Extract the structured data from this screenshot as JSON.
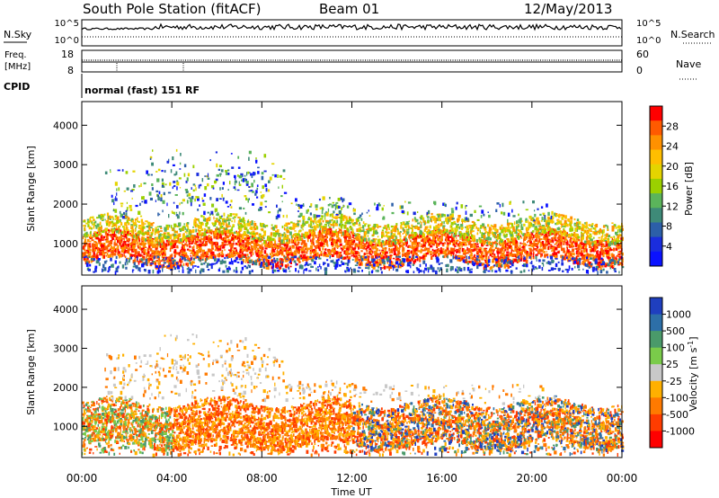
{
  "header": {
    "station": "South Pole Station (fitACF)",
    "beam": "Beam 01",
    "date": "12/May/2013"
  },
  "top_panels": {
    "nsky_label": "N.Sky",
    "nsearch_label": "N.Search",
    "nsky_ticks": [
      "10^5",
      "10^0"
    ],
    "nsearch_ticks": [
      "10^5",
      "10^0"
    ],
    "freq_label": "Freq.",
    "freq_unit": "[MHz]",
    "freq_ticks": [
      "18",
      "8"
    ],
    "nave_label": "Nave",
    "nave_ticks": [
      "60",
      "0"
    ],
    "cpid_label": "CPID",
    "cpid_text": "normal (fast) 151 RF"
  },
  "chart_data": [
    {
      "type": "heatmap",
      "name": "power",
      "ylabel": "Slant Range [km]",
      "ylim": [
        200,
        4600
      ],
      "yticks": [
        "4000",
        "3000",
        "2000",
        "1000"
      ],
      "ytick_values": [
        4000,
        3000,
        2000,
        1000
      ],
      "xlim": [
        0,
        24
      ],
      "colorbar": {
        "label": "Power [dB]",
        "ticks": [
          "28",
          "24",
          "20",
          "16",
          "12",
          "8",
          "4"
        ],
        "colors": [
          "#ff0000",
          "#ff5a00",
          "#ff9100",
          "#ffbe00",
          "#e4d400",
          "#9bd000",
          "#5bb45b",
          "#3e8a78",
          "#2c5fa8",
          "#1a2ddd",
          "#0a12ff"
        ]
      },
      "features": [
        {
          "range_km": [
            500,
            1600
          ],
          "time_h": [
            0,
            24
          ],
          "note": "main scatter band"
        },
        {
          "range_km": [
            1800,
            3400
          ],
          "time_h": [
            1,
            9
          ],
          "note": "upper scatter"
        }
      ]
    },
    {
      "type": "heatmap",
      "name": "velocity",
      "ylabel": "Slant Range [km]",
      "ylim": [
        200,
        4600
      ],
      "yticks": [
        "4000",
        "3000",
        "2000",
        "1000"
      ],
      "ytick_values": [
        4000,
        3000,
        2000,
        1000
      ],
      "xlim": [
        0,
        24
      ],
      "colorbar": {
        "label": "Velocity [m s^-1]",
        "ticks": [
          "1000",
          "500",
          "100",
          "25",
          "-25",
          "-100",
          "-500",
          "-1000"
        ],
        "colors": [
          "#1f3fbf",
          "#2d6fa8",
          "#4a9a6a",
          "#7acb4a",
          "#c8c8c8",
          "#ffb000",
          "#ff7a00",
          "#ff3c00",
          "#ff0000"
        ]
      }
    }
  ],
  "x_axis": {
    "label": "Time UT",
    "ticks": [
      "00:00",
      "04:00",
      "08:00",
      "12:00",
      "16:00",
      "20:00",
      "00:00"
    ]
  }
}
